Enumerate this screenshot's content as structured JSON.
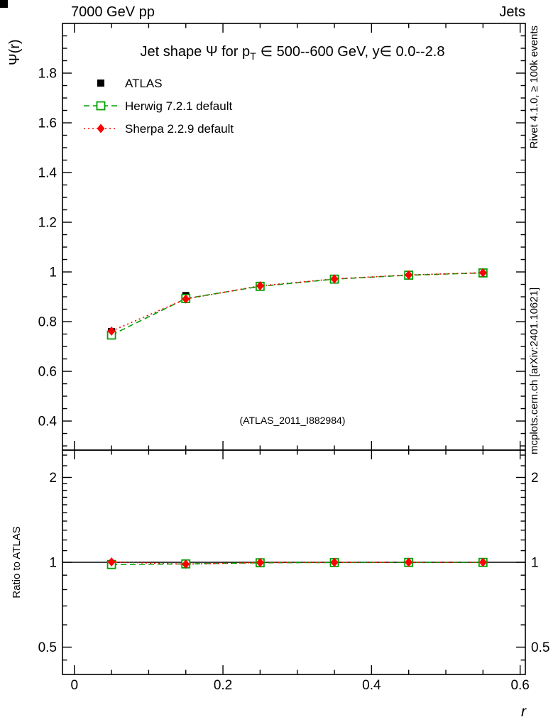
{
  "header": {
    "left": "7000 GeV pp",
    "right": "Jets"
  },
  "side_texts": {
    "rivet": "Rivet 4.1.0, ≥ 100k events",
    "mcplots": "mcplots.cern.ch [arXiv:2401.10621]"
  },
  "watermark": "(ATLAS_2011_I882984)",
  "chart_data": {
    "type": "line",
    "title": "Jet shape Ψ for p_T ∈ 500--600 GeV, y∈ 0.0--2.8",
    "title_parts": [
      "Jet shape Ψ for p",
      "T",
      "∈ 500--600 GeV, y∈ 0.0--2.8"
    ],
    "xlabel": "r",
    "ylabel": "Ψ(r)",
    "ratio_ylabel": "Ratio to ATLAS",
    "x": [
      0.05,
      0.15,
      0.25,
      0.35,
      0.45,
      0.55
    ],
    "series": [
      {
        "name": "ATLAS",
        "color": "#000000",
        "marker": "filled-square",
        "line": "none",
        "values": [
          0.76,
          0.905,
          0.946,
          0.973,
          0.988,
          0.997
        ]
      },
      {
        "name": "Herwig 7.2.1 default",
        "color": "#00a000",
        "marker": "open-square",
        "line": "dashed",
        "values": [
          0.746,
          0.893,
          0.942,
          0.971,
          0.987,
          0.996
        ]
      },
      {
        "name": "Sherpa 2.2.9 default",
        "color": "#ff0000",
        "marker": "filled-diamond",
        "line": "dotted",
        "values": [
          0.762,
          0.891,
          0.944,
          0.972,
          0.988,
          0.997
        ]
      }
    ],
    "ratio_series": [
      {
        "name": "Herwig 7.2.1 default",
        "values": [
          0.982,
          0.987,
          0.996,
          0.998,
          0.999,
          0.999
        ]
      },
      {
        "name": "Sherpa 2.2.9 default",
        "values": [
          1.003,
          0.985,
          0.998,
          0.999,
          1.0,
          1.0
        ]
      }
    ],
    "xlim": [
      -0.016,
      0.607
    ],
    "xticks": [
      0,
      0.2,
      0.4,
      0.6
    ],
    "main_ylim": [
      0.283,
      2.0
    ],
    "main_yticks": [
      0.4,
      0.6,
      0.8,
      1,
      1.2,
      1.4,
      1.6,
      1.8
    ],
    "ratio_ylim": [
      0.4,
      2.5
    ],
    "ratio_yticks": [
      0.5,
      1,
      2
    ],
    "ratio_scale": "log",
    "legend_position": "top-left",
    "grid": false
  }
}
